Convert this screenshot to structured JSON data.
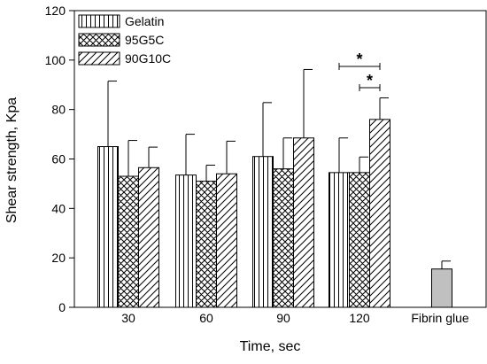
{
  "chart_data": {
    "type": "bar",
    "xlabel": "Time, sec",
    "ylabel": "Shear strength, Kpa",
    "ylim": [
      0,
      120
    ],
    "y_ticks": [
      0,
      20,
      40,
      60,
      80,
      100,
      120
    ],
    "categories": [
      "30",
      "60",
      "90",
      "120",
      "Fibrin glue"
    ],
    "series": [
      {
        "name": "Gelatin",
        "pattern": "vertical-lines",
        "values": [
          65,
          53.5,
          61,
          54.5,
          null
        ],
        "errors": [
          26.5,
          16.5,
          21.8,
          14,
          null
        ]
      },
      {
        "name": "95G5C",
        "pattern": "crosshatch",
        "values": [
          53,
          51,
          56,
          54.5,
          null
        ],
        "errors": [
          14.5,
          6.5,
          12.5,
          6.3,
          null
        ]
      },
      {
        "name": "90G10C",
        "pattern": "diagonal-lines",
        "values": [
          56.5,
          54,
          68.5,
          76,
          null
        ],
        "errors": [
          8.3,
          13.2,
          27.7,
          8.7,
          null
        ]
      }
    ],
    "reference": {
      "category": "Fibrin glue",
      "value": 15.5,
      "error": 3.2,
      "color": "#c0c0c0"
    },
    "significance": [
      {
        "category": "120",
        "from_series": "Gelatin",
        "to_series": "90G10C",
        "label": "*"
      },
      {
        "category": "120",
        "from_series": "95G5C",
        "to_series": "90G10C",
        "label": "*"
      }
    ],
    "legend": {
      "position": "top-left"
    },
    "grid": false
  }
}
